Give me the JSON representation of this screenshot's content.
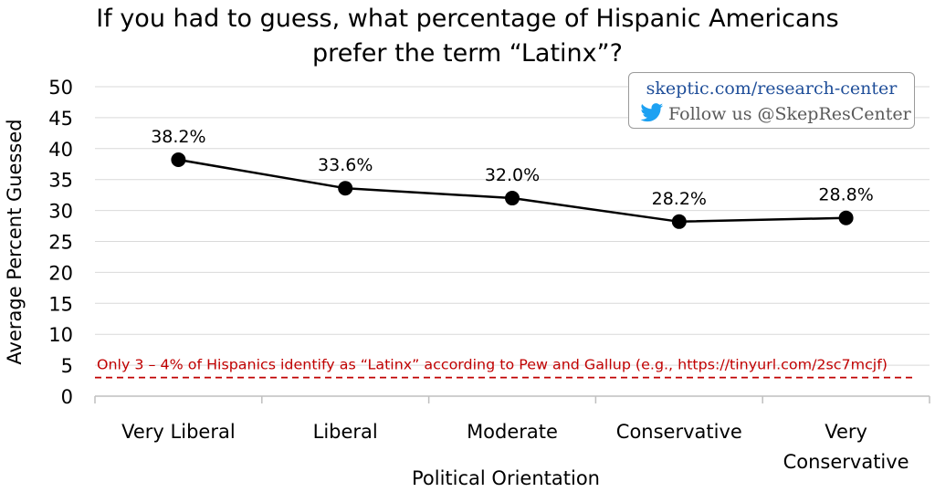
{
  "chart_data": {
    "type": "line",
    "title": [
      "If you had to guess, what percentage of Hispanic Americans",
      "prefer the term “Latinx”?"
    ],
    "xlabel": "Political Orientation",
    "ylabel": "Average Percent Guessed",
    "categories": [
      "Very Liberal",
      "Liberal",
      "Moderate",
      "Conservative",
      "Very Conservative"
    ],
    "category_lines": [
      [
        "Very Liberal"
      ],
      [
        "Liberal"
      ],
      [
        "Moderate"
      ],
      [
        "Conservative"
      ],
      [
        "Very",
        "Conservative"
      ]
    ],
    "series": [
      {
        "values": [
          38.2,
          33.6,
          32.0,
          28.2,
          28.8
        ],
        "labels": [
          "38.2%",
          "33.6%",
          "32.0%",
          "28.2%",
          "28.8%"
        ],
        "color": "#000000"
      }
    ],
    "ylim": [
      0,
      50
    ],
    "yticks": [
      0,
      5,
      10,
      15,
      20,
      25,
      30,
      35,
      40,
      45,
      50
    ],
    "grid": true,
    "reference_line": {
      "value": 3,
      "label": "Only 3 – 4% of Hispanics identify as “Latinx” according to Pew and Gallup (e.g., https://tinyurl.com/2sc7mcjf)",
      "color": "#c00000",
      "style": "dashed"
    }
  },
  "credit": {
    "url": "skeptic.com/research-center",
    "follow": "Follow us @SkepResCenter",
    "icon": "twitter-bird-icon",
    "icon_color": "#1da1f2",
    "url_color": "#1f4e99"
  }
}
